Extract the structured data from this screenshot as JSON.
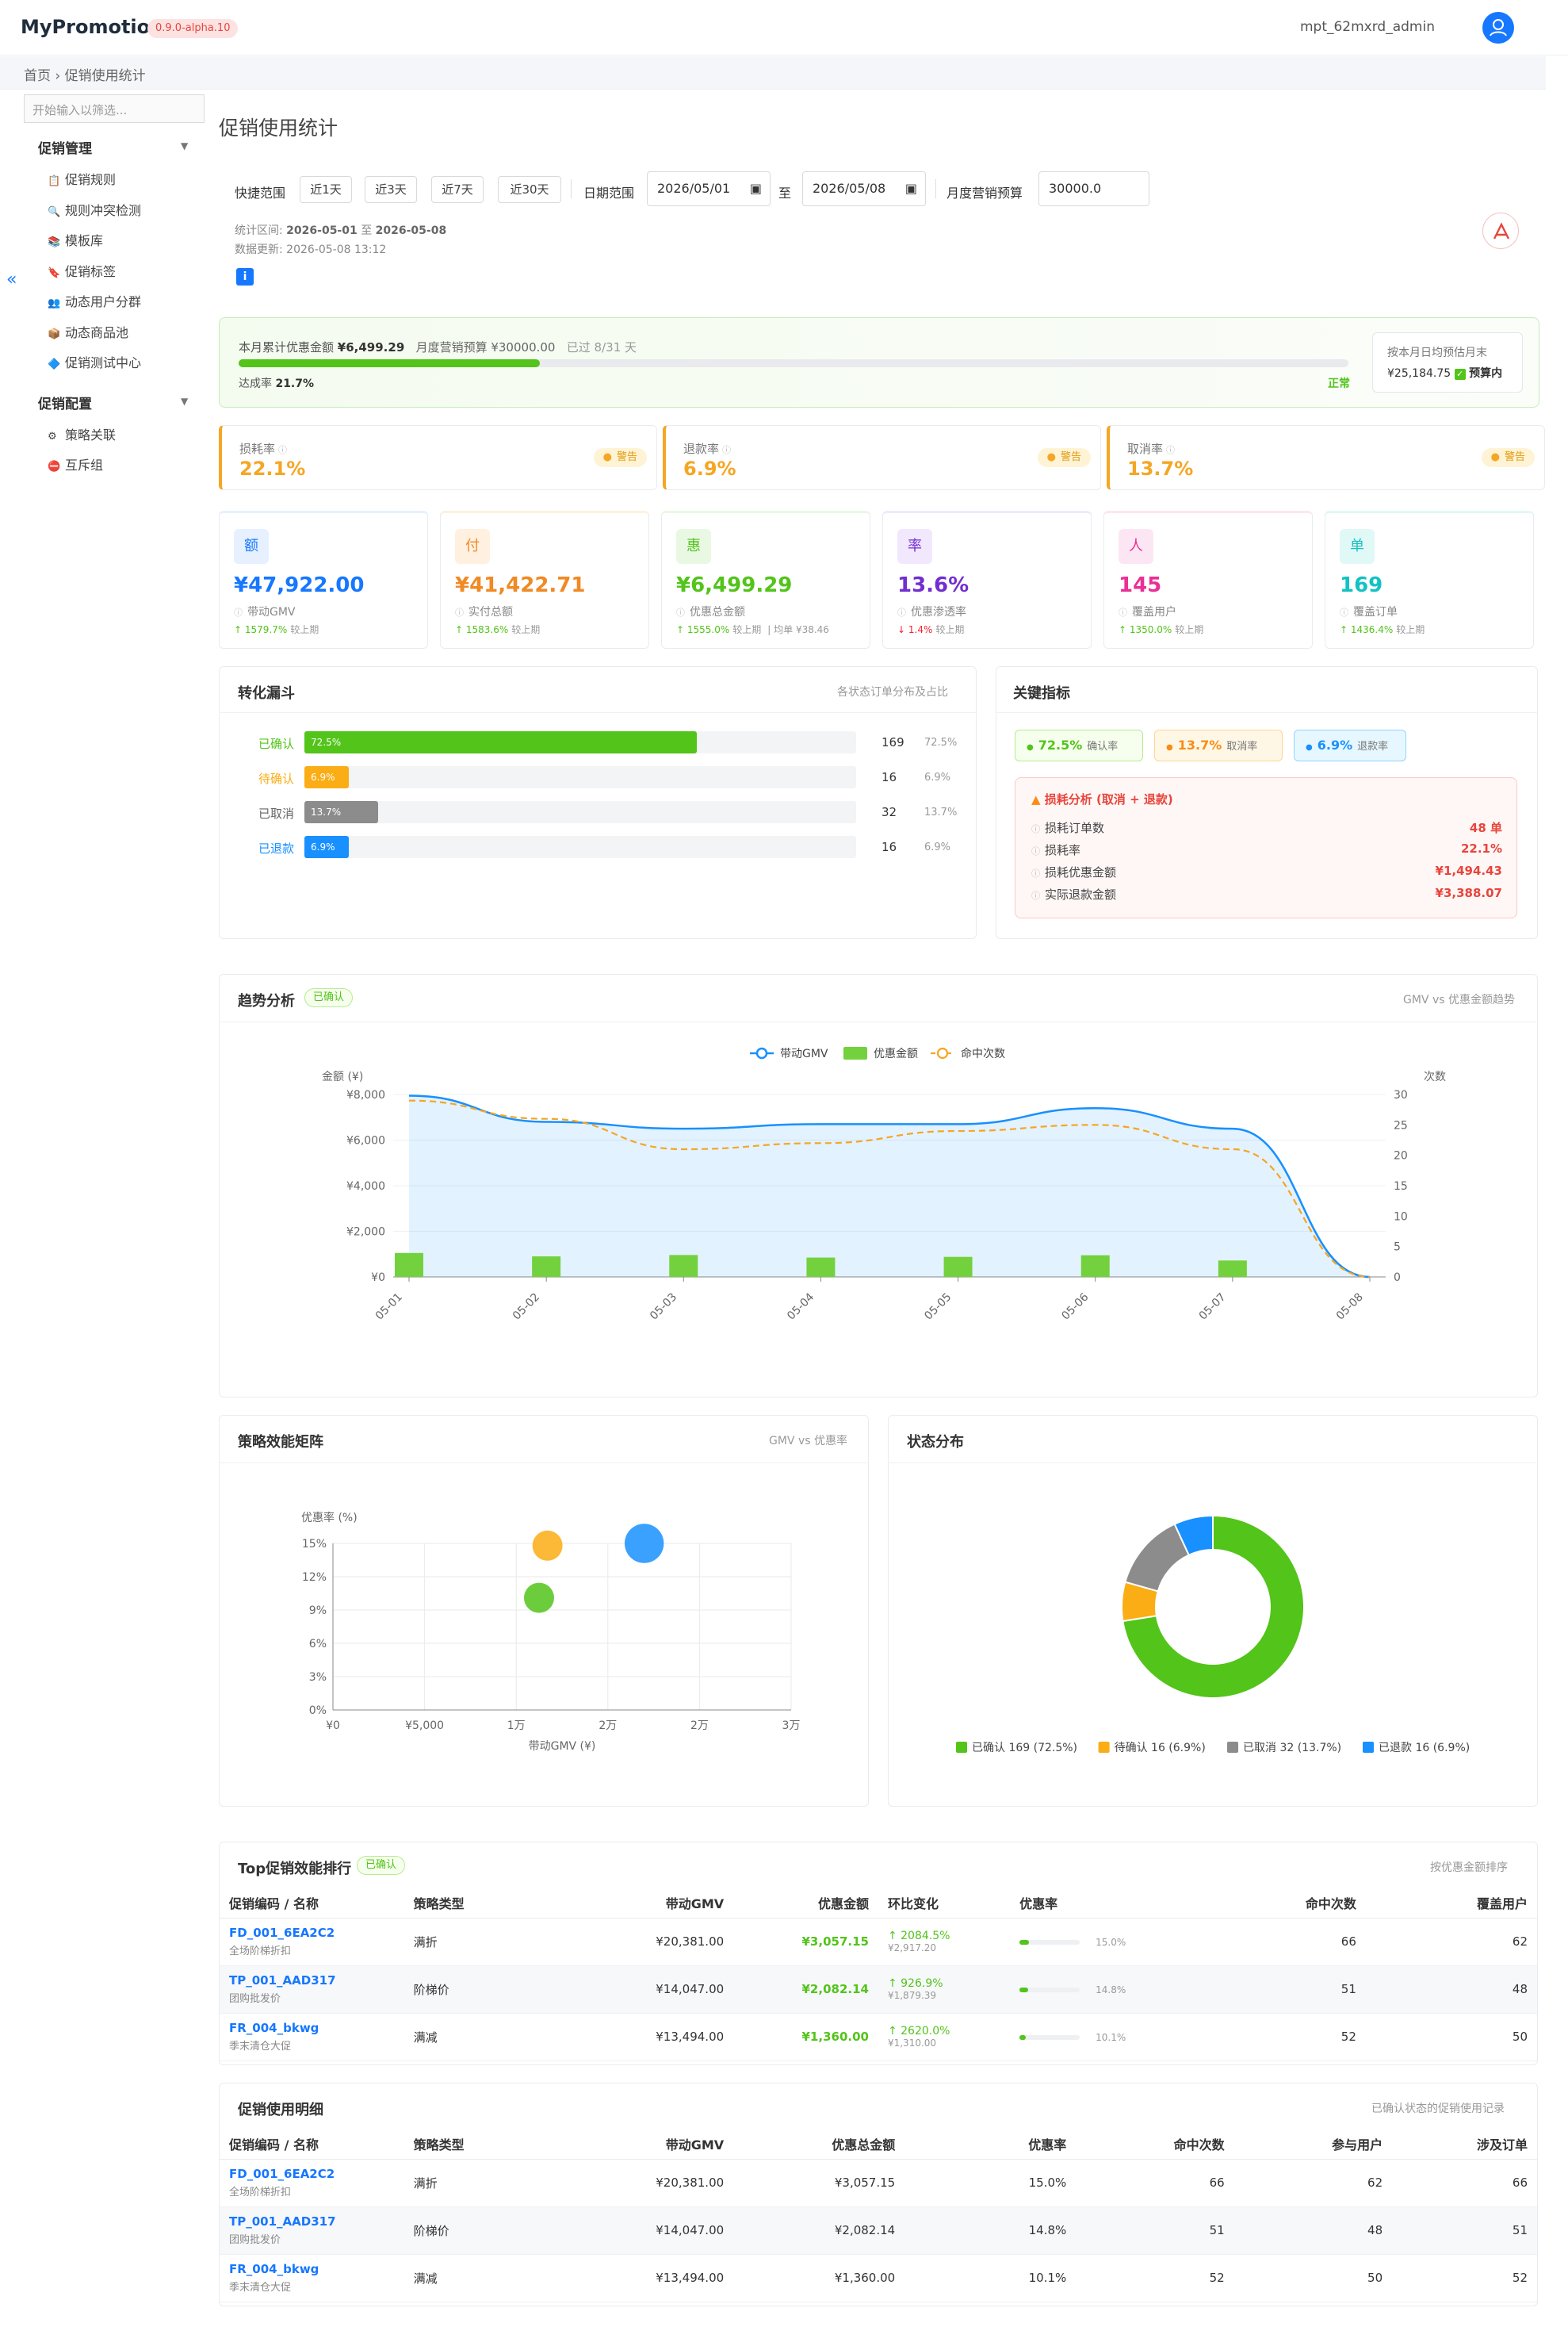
{
  "app": {
    "brand": "MyPromotion",
    "version": "0.9.0-alpha.10",
    "user": "mpt_62mxrd_admin",
    "breadcrumb": "首页 › 促销使用统计"
  },
  "sidebar": {
    "filter_placeholder": "开始输入以筛选...",
    "groups": [
      {
        "label": "促销管理",
        "items": [
          {
            "icon": "rules-icon",
            "glyph": "📋",
            "label": "促销规则"
          },
          {
            "icon": "conflict-check-icon",
            "glyph": "🔍",
            "label": "规则冲突检测"
          },
          {
            "icon": "template-icon",
            "glyph": "📚",
            "label": "模板库"
          },
          {
            "icon": "tag-icon",
            "glyph": "🔖",
            "label": "促销标签"
          },
          {
            "icon": "user-group-icon",
            "glyph": "👥",
            "label": "动态用户分群"
          },
          {
            "icon": "product-pool-icon",
            "glyph": "📦",
            "label": "动态商品池"
          },
          {
            "icon": "test-center-icon",
            "glyph": "🔷",
            "label": "促销测试中心"
          }
        ]
      },
      {
        "label": "促销配置",
        "items": [
          {
            "icon": "strategy-link-icon",
            "glyph": "⚙",
            "label": "策略关联"
          },
          {
            "icon": "exclusive-group-icon",
            "glyph": "⛔",
            "label": "互斥组"
          }
        ]
      }
    ]
  },
  "page": {
    "title": "促销使用统计"
  },
  "filters": {
    "quick_label": "快捷范围",
    "quick": [
      "近1天",
      "近3天",
      "近7天",
      "近30天"
    ],
    "date_label": "日期范围",
    "date_from": "2026/05/01",
    "date_sep": "至",
    "date_to": "2026/05/08",
    "budget_label": "月度营销预算",
    "budget_value": "30000.0"
  },
  "meta": {
    "range_label": "统计区间:",
    "range_from": "2026-05-01",
    "range_sep": "至",
    "range_to": "2026-05-08",
    "updated": "数据更新: 2026-05-08 13:12"
  },
  "budget": {
    "text_a": "本月累计优惠金额",
    "amount": "¥6,499.29",
    "text_b": "月度营销预算 ¥30000.00",
    "passed": "已过 8/31 天",
    "rate_label": "达成率",
    "rate": "21.7%",
    "progress": 0.217,
    "status": "正常",
    "forecast_label": "按本月日均预估月末",
    "forecast_value": "¥25,184.75",
    "forecast_tag": "预算内"
  },
  "warnings": [
    {
      "label": "损耗率",
      "value": "22.1%",
      "badge": "警告"
    },
    {
      "label": "退款率",
      "value": "6.9%",
      "badge": "警告"
    },
    {
      "label": "取消率",
      "value": "13.7%",
      "badge": "警告"
    }
  ],
  "kpis": [
    {
      "icon": "额",
      "value": "¥47,922.00",
      "label": "带动GMV",
      "delta": "↑ 1579.7%",
      "delta_note": "较上期",
      "extra": "",
      "color": "#1677ff",
      "bg": "#e6f0ff"
    },
    {
      "icon": "付",
      "value": "¥41,422.71",
      "label": "实付总额",
      "delta": "↑ 1583.6%",
      "delta_note": "较上期",
      "extra": "",
      "color": "#f08a24",
      "bg": "#fff0e0"
    },
    {
      "icon": "惠",
      "value": "¥6,499.29",
      "label": "优惠总金额",
      "delta": "↑ 1555.0%",
      "delta_note": "较上期",
      "extra": "| 均单 ¥38.46",
      "color": "#52c41a",
      "bg": "#e9f8e3"
    },
    {
      "icon": "率",
      "value": "13.6%",
      "label": "优惠渗透率",
      "delta": "↓ 1.4%",
      "delta_note": "较上期",
      "extra": "",
      "color": "#722ed1",
      "bg": "#f1e8fd"
    },
    {
      "icon": "人",
      "value": "145",
      "label": "覆盖用户",
      "delta": "↑ 1350.0%",
      "delta_note": "较上期",
      "extra": "",
      "color": "#eb2f96",
      "bg": "#fde6f3"
    },
    {
      "icon": "单",
      "value": "169",
      "label": "覆盖订单",
      "delta": "↑ 1436.4%",
      "delta_note": "较上期",
      "extra": "",
      "color": "#13c2c2",
      "bg": "#e0f8f6"
    }
  ],
  "funnel": {
    "title": "转化漏斗",
    "subtitle": "各状态订单分布及占比",
    "rows": [
      {
        "label": "已确认",
        "pct": "72.5%",
        "frac": 0.725,
        "count": "169",
        "color": "#52c41a",
        "lcolor": "#52c41a"
      },
      {
        "label": "待确认",
        "pct": "6.9%",
        "frac": 0.069,
        "count": "16",
        "color": "#faad14",
        "lcolor": "#faad14"
      },
      {
        "label": "已取消",
        "pct": "13.7%",
        "frac": 0.137,
        "count": "32",
        "color": "#8c8c8c",
        "lcolor": "#666666"
      },
      {
        "label": "已退款",
        "pct": "6.9%",
        "frac": 0.069,
        "count": "16",
        "color": "#1890ff",
        "lcolor": "#1890ff"
      }
    ]
  },
  "keymetrics": {
    "title": "关键指标",
    "chips": [
      {
        "value": "72.5%",
        "label": "确认率",
        "color": "#52c41a",
        "bg": "#f6ffed",
        "border": "#b7eb8f"
      },
      {
        "value": "13.7%",
        "label": "取消率",
        "color": "#fa8c16",
        "bg": "#fff7e6",
        "border": "#ffd591"
      },
      {
        "value": "6.9%",
        "label": "退款率",
        "color": "#1890ff",
        "bg": "#e6f7ff",
        "border": "#91d5ff"
      }
    ],
    "loss_title": "损耗分析 (取消 + 退款)",
    "loss_rows": [
      {
        "label": "损耗订单数",
        "value": "48 单"
      },
      {
        "label": "损耗率",
        "value": "22.1%"
      },
      {
        "label": "损耗优惠金额",
        "value": "¥1,494.43"
      },
      {
        "label": "实际退款金额",
        "value": "¥3,388.07"
      }
    ]
  },
  "trend": {
    "title": "趋势分析",
    "chip": "已确认",
    "subtitle": "GMV vs 优惠金额趋势"
  },
  "matrix": {
    "title": "策略效能矩阵",
    "subtitle": "GMV vs 优惠率"
  },
  "status": {
    "title": "状态分布"
  },
  "chart_data": [
    {
      "type": "line",
      "x": [
        "05-01",
        "05-02",
        "05-03",
        "05-04",
        "05-05",
        "05-06",
        "05-07",
        "05-08"
      ],
      "series": [
        {
          "name": "带动GMV",
          "axis": "left",
          "kind": "area-line",
          "values": [
            7950,
            6800,
            6500,
            6700,
            6700,
            7400,
            6500,
            0
          ],
          "color": "#1890ff"
        },
        {
          "name": "优惠金额",
          "axis": "left",
          "kind": "bar",
          "values": [
            1050,
            900,
            960,
            850,
            880,
            950,
            720,
            0
          ],
          "color": "#73d13d"
        },
        {
          "name": "命中次数",
          "axis": "right",
          "kind": "dashed-line",
          "values": [
            29,
            26,
            21,
            22,
            24,
            25,
            21,
            0
          ],
          "color": "#f5a623"
        }
      ],
      "ylabel": "金额 (¥)",
      "ylabel_right": "次数",
      "ylim": [
        0,
        8000
      ],
      "ylim_right": [
        0,
        30
      ],
      "yticks": [
        "¥0",
        "¥2,000",
        "¥4,000",
        "¥6,000",
        "¥8,000"
      ],
      "yticks_right": [
        "0",
        "5",
        "10",
        "15",
        "20",
        "25",
        "30"
      ],
      "legend": "top"
    },
    {
      "type": "scatter",
      "xlabel": "带动GMV (¥)",
      "ylabel": "优惠率 (%)",
      "xlim": [
        0,
        30000
      ],
      "ylim": [
        0,
        15
      ],
      "xticks": [
        "¥0",
        "¥5,000",
        "1万",
        "2万",
        "2万",
        "3万"
      ],
      "yticks": [
        "0%",
        "3%",
        "6%",
        "9%",
        "12%",
        "15%"
      ],
      "points": [
        {
          "x": 13494,
          "y": 10.1,
          "r": 10,
          "color": "#52c41a"
        },
        {
          "x": 14047,
          "y": 14.8,
          "r": 10,
          "color": "#faad14"
        },
        {
          "x": 20381,
          "y": 15.0,
          "r": 13,
          "color": "#1890ff"
        }
      ]
    },
    {
      "type": "pie",
      "donut": true,
      "legend": "bottom",
      "slices": [
        {
          "label": "已确认",
          "count": "169",
          "pct": "72.5%",
          "value": 72.5,
          "color": "#52c41a"
        },
        {
          "label": "待确认",
          "count": "16",
          "pct": "6.9%",
          "value": 6.9,
          "color": "#faad14"
        },
        {
          "label": "已取消",
          "count": "32",
          "pct": "13.7%",
          "value": 13.7,
          "color": "#8c8c8c"
        },
        {
          "label": "已退款",
          "count": "16",
          "pct": "6.9%",
          "value": 6.9,
          "color": "#1890ff"
        }
      ]
    }
  ],
  "top": {
    "title": "Top促销效能排行",
    "chip": "已确认",
    "subtitle": "按优惠金额排序",
    "headers": [
      "促销编码 / 名称",
      "策略类型",
      "带动GMV",
      "优惠金额",
      "环比变化",
      "优惠率",
      "命中次数",
      "覆盖用户"
    ],
    "rows": [
      {
        "code": "FD_001_6EA2C2",
        "name": "全场阶梯折扣",
        "type": "满折",
        "gmv": "¥20,381.00",
        "disc": "¥3,057.15",
        "chg": "↑ 2084.5%",
        "prev": "¥2,917.20",
        "rate": "15.0%",
        "rate_frac": 0.15,
        "hits": "66",
        "users": "62"
      },
      {
        "code": "TP_001_AAD317",
        "name": "团购批发价",
        "type": "阶梯价",
        "gmv": "¥14,047.00",
        "disc": "¥2,082.14",
        "chg": "↑ 926.9%",
        "prev": "¥1,879.39",
        "rate": "14.8%",
        "rate_frac": 0.148,
        "hits": "51",
        "users": "48"
      },
      {
        "code": "FR_004_bkwg",
        "name": "季末清仓大促",
        "type": "满减",
        "gmv": "¥13,494.00",
        "disc": "¥1,360.00",
        "chg": "↑ 2620.0%",
        "prev": "¥1,310.00",
        "rate": "10.1%",
        "rate_frac": 0.101,
        "hits": "52",
        "users": "50"
      }
    ]
  },
  "detail": {
    "title": "促销使用明细",
    "subtitle": "已确认状态的促销使用记录",
    "headers": [
      "促销编码 / 名称",
      "策略类型",
      "带动GMV",
      "优惠总金额",
      "优惠率",
      "命中次数",
      "参与用户",
      "涉及订单"
    ],
    "rows": [
      {
        "code": "FD_001_6EA2C2",
        "name": "全场阶梯折扣",
        "type": "满折",
        "gmv": "¥20,381.00",
        "disc": "¥3,057.15",
        "rate": "15.0%",
        "hits": "66",
        "users": "62",
        "orders": "66"
      },
      {
        "code": "TP_001_AAD317",
        "name": "团购批发价",
        "type": "阶梯价",
        "gmv": "¥14,047.00",
        "disc": "¥2,082.14",
        "rate": "14.8%",
        "hits": "51",
        "users": "48",
        "orders": "51"
      },
      {
        "code": "FR_004_bkwg",
        "name": "季末清仓大促",
        "type": "满减",
        "gmv": "¥13,494.00",
        "disc": "¥1,360.00",
        "rate": "10.1%",
        "hits": "52",
        "users": "50",
        "orders": "52"
      }
    ]
  }
}
